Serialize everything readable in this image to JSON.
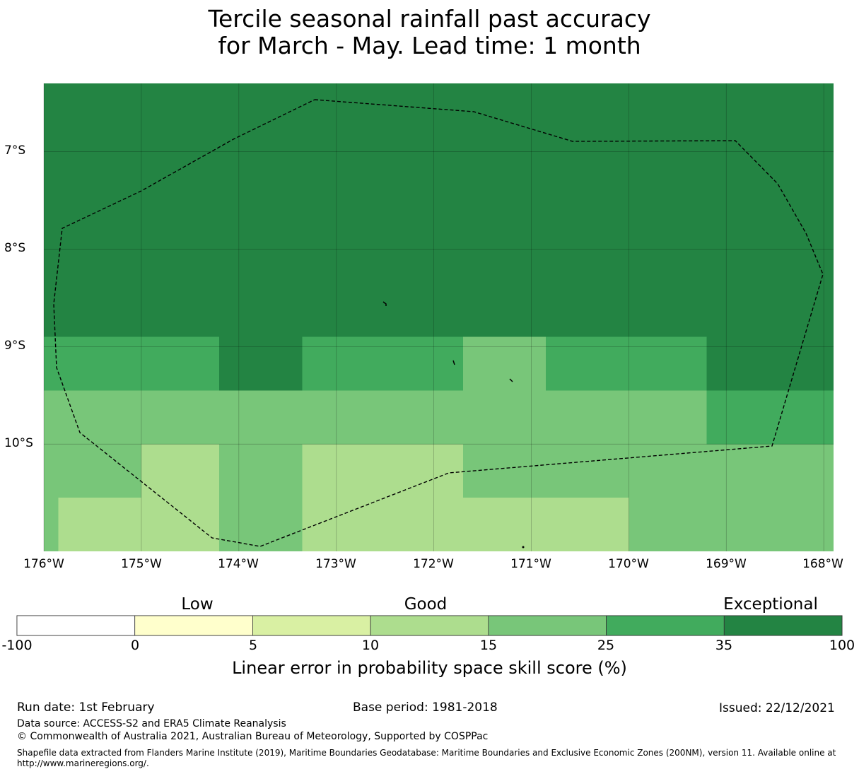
{
  "title": {
    "line1": "Tercile seasonal rainfall past accuracy",
    "line2": "for March - May. Lead time: 1 month"
  },
  "map": {
    "lat_labels": [
      "7°S",
      "8°S",
      "9°S",
      "10°S"
    ],
    "lon_labels": [
      "176°W",
      "175°W",
      "174°W",
      "173°W",
      "172°W",
      "171°W",
      "170°W",
      "169°W",
      "168°W"
    ],
    "lat_range": [
      -11.1,
      -6.3
    ],
    "lon_range": [
      -176.0,
      -167.9
    ],
    "grid": true,
    "boundary_style": "dashed",
    "cell_values": [
      {
        "lon": [
          -176.0,
          -167.9
        ],
        "lat": [
          -8.9,
          -6.3
        ],
        "class": "35-100"
      },
      {
        "lon": [
          -176.0,
          -174.2
        ],
        "lat": [
          -9.45,
          -8.9
        ],
        "class": "25-35"
      },
      {
        "lon": [
          -174.2,
          -173.35
        ],
        "lat": [
          -9.45,
          -8.9
        ],
        "class": "35-100"
      },
      {
        "lon": [
          -173.35,
          -171.7
        ],
        "lat": [
          -9.45,
          -8.9
        ],
        "class": "25-35"
      },
      {
        "lon": [
          -171.7,
          -170.85
        ],
        "lat": [
          -9.45,
          -8.9
        ],
        "class": "15-25"
      },
      {
        "lon": [
          -170.85,
          -169.2
        ],
        "lat": [
          -9.45,
          -8.9
        ],
        "class": "25-35"
      },
      {
        "lon": [
          -169.2,
          -167.9
        ],
        "lat": [
          -9.45,
          -8.9
        ],
        "class": "35-100"
      },
      {
        "lon": [
          -176.0,
          -169.2
        ],
        "lat": [
          -10.0,
          -9.45
        ],
        "class": "15-25"
      },
      {
        "lon": [
          -169.2,
          -167.9
        ],
        "lat": [
          -10.0,
          -9.45
        ],
        "class": "25-35"
      },
      {
        "lon": [
          -176.0,
          -175.0
        ],
        "lat": [
          -10.55,
          -10.0
        ],
        "class": "15-25"
      },
      {
        "lon": [
          -175.0,
          -174.2
        ],
        "lat": [
          -11.1,
          -10.0
        ],
        "class": "10-15"
      },
      {
        "lon": [
          -176.0,
          -175.85
        ],
        "lat": [
          -11.1,
          -10.55
        ],
        "class": "15-25"
      },
      {
        "lon": [
          -175.85,
          -175.0
        ],
        "lat": [
          -11.1,
          -10.55
        ],
        "class": "10-15"
      },
      {
        "lon": [
          -174.2,
          -173.35
        ],
        "lat": [
          -11.1,
          -10.0
        ],
        "class": "15-25"
      },
      {
        "lon": [
          -173.35,
          -171.7
        ],
        "lat": [
          -11.1,
          -10.0
        ],
        "class": "10-15"
      },
      {
        "lon": [
          -171.7,
          -167.9
        ],
        "lat": [
          -10.55,
          -10.0
        ],
        "class": "15-25"
      },
      {
        "lon": [
          -171.7,
          -170.0
        ],
        "lat": [
          -11.1,
          -10.55
        ],
        "class": "10-15"
      },
      {
        "lon": [
          -170.0,
          -167.9
        ],
        "lat": [
          -11.1,
          -10.55
        ],
        "class": "15-25"
      }
    ]
  },
  "colorbar": {
    "categories": [
      {
        "label": "Low",
        "class": "0-5"
      },
      {
        "label": "Good",
        "class": "10-15"
      },
      {
        "label": "Exceptional",
        "class": "35-100"
      }
    ],
    "ticks": [
      "-100",
      "0",
      "5",
      "10",
      "15",
      "25",
      "35",
      "100"
    ],
    "bins": [
      {
        "range": "-100-0",
        "color": "#ffffff"
      },
      {
        "range": "0-5",
        "color": "#ffffcc"
      },
      {
        "range": "5-10",
        "color": "#d9f0a3"
      },
      {
        "range": "10-15",
        "color": "#addd8e"
      },
      {
        "range": "15-25",
        "color": "#78c679"
      },
      {
        "range": "25-35",
        "color": "#41ab5d"
      },
      {
        "range": "35-100",
        "color": "#238443"
      }
    ],
    "label": "Linear error in probability space skill score (%)"
  },
  "footer": {
    "run_date": "Run date: 1st February",
    "base_period": "Base period: 1981-2018",
    "issued": "Issued: 22/12/2021",
    "data_source": "Data source: ACCESS-S2 and ERA5 Climate Reanalysis",
    "copyright": "© Commonwealth of Australia 2021, Australian Bureau of Meteorology, Supported by COSPPac",
    "shapefile": "Shapefile data extracted from Flanders Marine Institute (2019), Maritime Boundaries Geodatabase: Maritime Boundaries and Exclusive Economic Zones (200NM), version 11. Available online at http://www.marineregions.org/."
  }
}
